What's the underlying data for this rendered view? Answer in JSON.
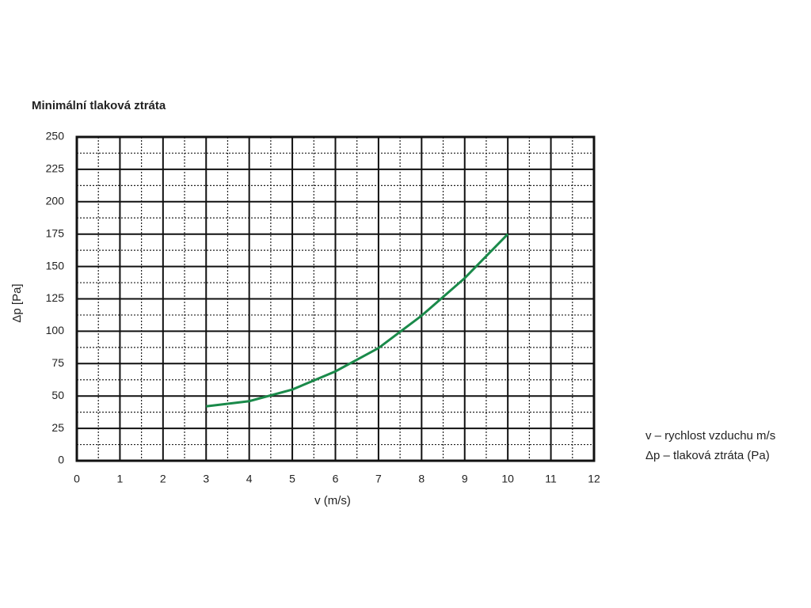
{
  "chart_data": {
    "type": "line",
    "title": "Minimální tlaková ztráta",
    "x_label": "v (m/s)",
    "y_label": "Δp [Pa]",
    "x": [
      3,
      4,
      5,
      6,
      7,
      8,
      9,
      10
    ],
    "series": [
      {
        "name": "Δp",
        "color": "#1a8a4a",
        "values": [
          42,
          46,
          55,
          69,
          87,
          112,
          141,
          175
        ]
      }
    ],
    "xlim": [
      0,
      12
    ],
    "xticks": [
      0,
      1,
      2,
      3,
      4,
      5,
      6,
      7,
      8,
      9,
      10,
      11,
      12
    ],
    "ylim": [
      0,
      250
    ],
    "yticks": [
      0,
      25,
      50,
      75,
      100,
      125,
      150,
      175,
      200,
      225,
      250
    ],
    "grid": true,
    "minor_grid": true,
    "annotations": [
      "v – rychlost vzduchu m/s",
      "Δp – tlaková ztráta (Pa)"
    ]
  }
}
